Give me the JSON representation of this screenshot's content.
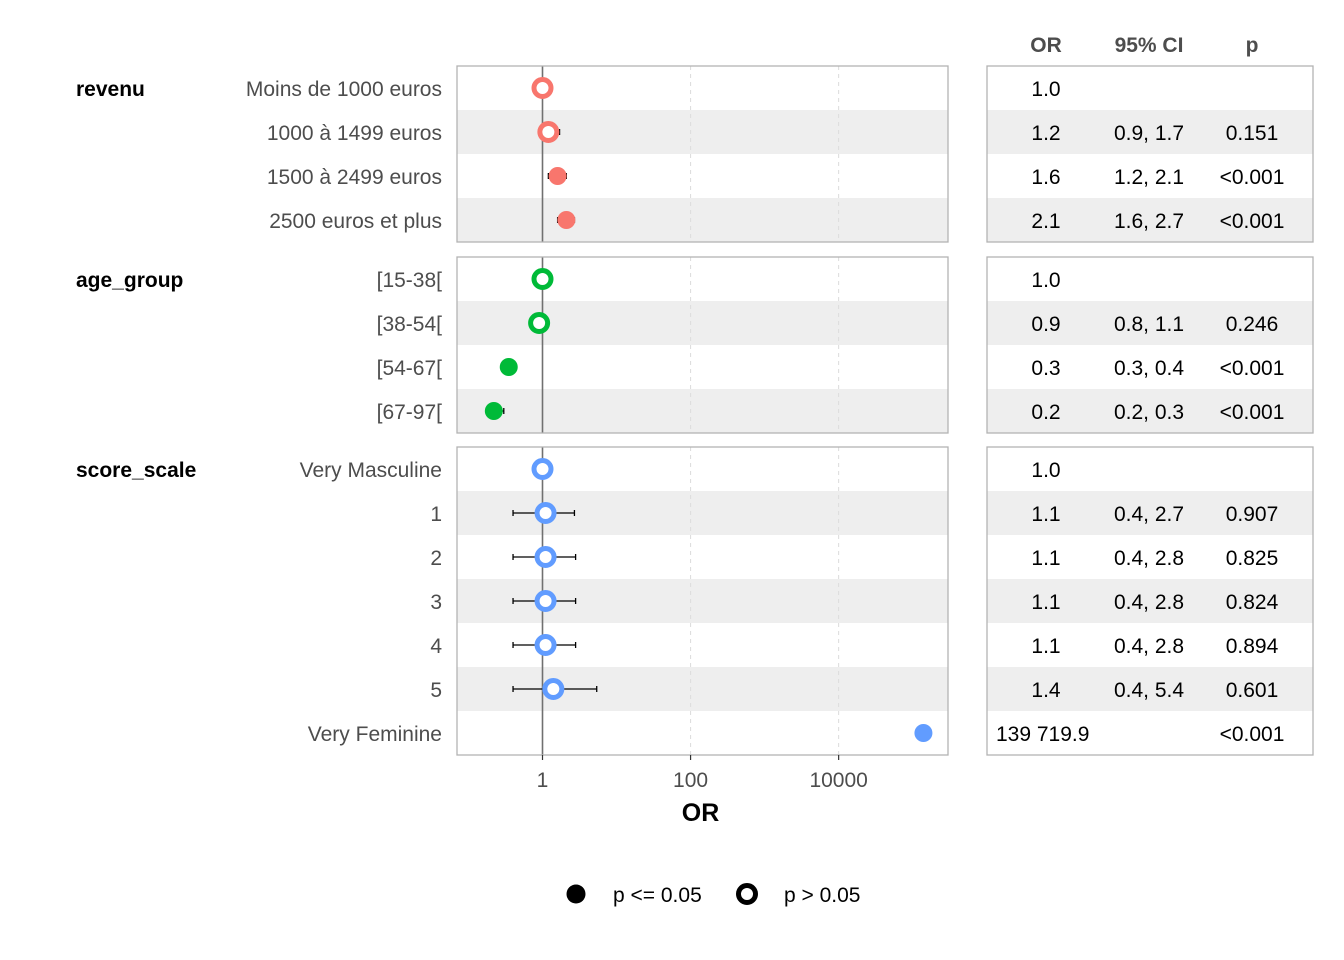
{
  "chart_data": {
    "type": "forest",
    "xlabel": "OR",
    "x_scale": "log10",
    "xlim": [
      0.07,
      300000
    ],
    "x_ticks": [
      {
        "value": 1,
        "label": "1"
      },
      {
        "value": 100,
        "label": "100"
      },
      {
        "value": 10000,
        "label": "10000"
      }
    ],
    "reference_line": 1,
    "table_headers": {
      "or": "OR",
      "ci": "95% CI",
      "p": "p"
    },
    "groups": [
      {
        "term": "revenu",
        "color": "#F8766D",
        "rows": [
          {
            "level": "Moins de 1000 euros",
            "or": 1.0,
            "ci_low": null,
            "ci_high": null,
            "or_text": "1.0",
            "ci_text": "",
            "p_text": "",
            "significant": false
          },
          {
            "level": "1000 à 1499 euros",
            "or": 1.2,
            "ci_low": 0.9,
            "ci_high": 1.7,
            "or_text": "1.2",
            "ci_text": "0.9, 1.7",
            "p_text": "0.151",
            "significant": false
          },
          {
            "level": "1500 à 2499 euros",
            "or": 1.6,
            "ci_low": 1.2,
            "ci_high": 2.1,
            "or_text": "1.6",
            "ci_text": "1.2, 2.1",
            "p_text": "<0.001",
            "significant": true
          },
          {
            "level": "2500 euros et plus",
            "or": 2.1,
            "ci_low": 1.6,
            "ci_high": 2.7,
            "or_text": "2.1",
            "ci_text": "1.6, 2.7",
            "p_text": "<0.001",
            "significant": true
          }
        ]
      },
      {
        "term": "age_group",
        "color": "#00BA38",
        "rows": [
          {
            "level": "[15-38[",
            "or": 1.0,
            "ci_low": null,
            "ci_high": null,
            "or_text": "1.0",
            "ci_text": "",
            "p_text": "",
            "significant": false
          },
          {
            "level": "[38-54[",
            "or": 0.9,
            "ci_low": 0.8,
            "ci_high": 1.1,
            "or_text": "0.9",
            "ci_text": "0.8, 1.1",
            "p_text": "0.246",
            "significant": false
          },
          {
            "level": "[54-67[",
            "or": 0.35,
            "ci_low": 0.3,
            "ci_high": 0.4,
            "or_text": "0.3",
            "ci_text": "0.3, 0.4",
            "p_text": "<0.001",
            "significant": true
          },
          {
            "level": "[67-97[",
            "or": 0.22,
            "ci_low": 0.2,
            "ci_high": 0.3,
            "or_text": "0.2",
            "ci_text": "0.2, 0.3",
            "p_text": "<0.001",
            "significant": true
          }
        ]
      },
      {
        "term": "score_scale",
        "color": "#619CFF",
        "rows": [
          {
            "level": "Very Masculine",
            "or": 1.0,
            "ci_low": null,
            "ci_high": null,
            "or_text": "1.0",
            "ci_text": "",
            "p_text": "",
            "significant": false
          },
          {
            "level": "1",
            "or": 1.1,
            "ci_low": 0.4,
            "ci_high": 2.7,
            "or_text": "1.1",
            "ci_text": "0.4, 2.7",
            "p_text": "0.907",
            "significant": false
          },
          {
            "level": "2",
            "or": 1.1,
            "ci_low": 0.4,
            "ci_high": 2.8,
            "or_text": "1.1",
            "ci_text": "0.4, 2.8",
            "p_text": "0.825",
            "significant": false
          },
          {
            "level": "3",
            "or": 1.1,
            "ci_low": 0.4,
            "ci_high": 2.8,
            "or_text": "1.1",
            "ci_text": "0.4, 2.8",
            "p_text": "0.824",
            "significant": false
          },
          {
            "level": "4",
            "or": 1.1,
            "ci_low": 0.4,
            "ci_high": 2.8,
            "or_text": "1.1",
            "ci_text": "0.4, 2.8",
            "p_text": "0.894",
            "significant": false
          },
          {
            "level": "5",
            "or": 1.4,
            "ci_low": 0.4,
            "ci_high": 5.4,
            "or_text": "1.4",
            "ci_text": "0.4, 5.4",
            "p_text": "0.601",
            "significant": false
          },
          {
            "level": "Very Feminine",
            "or": 139719.9,
            "ci_low": null,
            "ci_high": null,
            "or_text": "139 719.9",
            "ci_text": "",
            "p_text": "<0.001",
            "significant": true
          }
        ]
      }
    ],
    "legend": {
      "position": "bottom",
      "items": [
        {
          "label": "p <= 0.05",
          "shape": "filled-circle"
        },
        {
          "label": "p > 0.05",
          "shape": "open-circle"
        }
      ]
    }
  }
}
